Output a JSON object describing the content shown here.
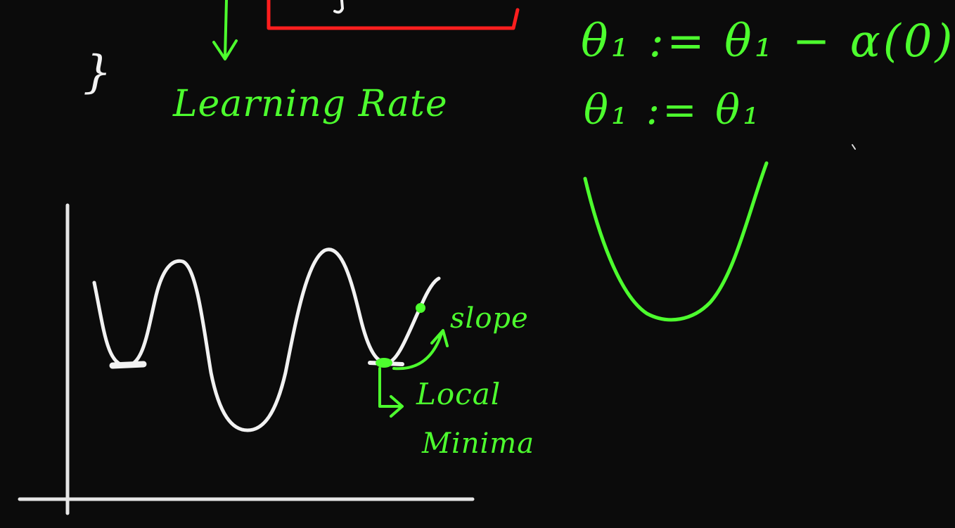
{
  "annotations": {
    "learning_rate": "Learning Rate",
    "equation_1": "θ₁ := θ₁ − α(0)",
    "equation_2": "θ₁ := θ₁",
    "slope": "slope",
    "local": "Local",
    "minima": "Minima",
    "brace": "}"
  },
  "colors": {
    "background": "#0b0b0b",
    "green_ink": "#4dff2e",
    "white_ink": "#f2f2f2",
    "red_box": "#ff1e1e"
  }
}
